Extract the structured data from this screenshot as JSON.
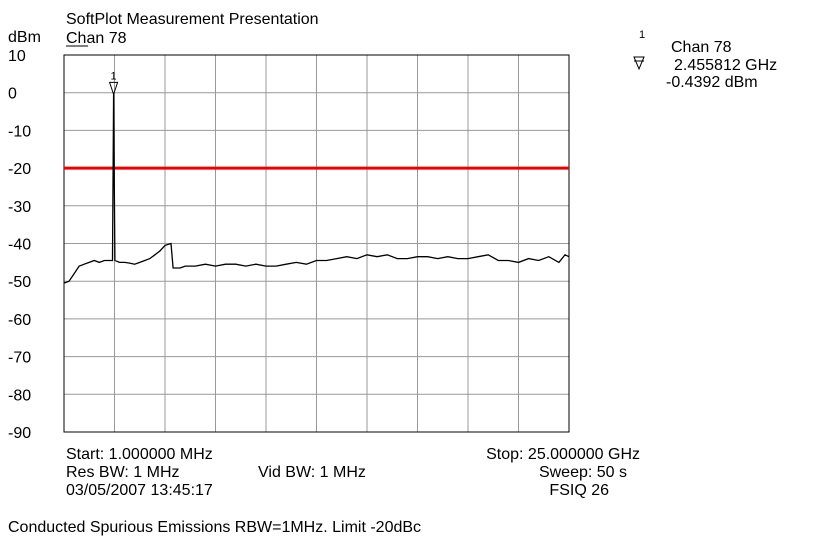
{
  "chart_data": {
    "type": "line",
    "title": "SoftPlot Measurement Presentation",
    "y_unit": "dBm",
    "trace_name": "Chan 78",
    "xlim": [
      0.001,
      25
    ],
    "ylim": [
      -90,
      10
    ],
    "yticks": [
      10,
      0,
      -10,
      -20,
      -30,
      -40,
      -50,
      -60,
      -70,
      -80,
      -90
    ],
    "x_divisions": 10,
    "grid": true,
    "limit": -20,
    "limit_color": "#ee0000",
    "series": [
      {
        "color": "#000000",
        "x": [
          0.001,
          0.25,
          0.5,
          0.75,
          1.0,
          1.25,
          1.5,
          1.75,
          2.0,
          2.3,
          2.4,
          2.455812,
          2.52,
          2.75,
          3.0,
          3.25,
          3.5,
          3.75,
          4.0,
          4.25,
          4.5,
          4.75,
          5.0,
          5.3,
          5.4,
          5.75,
          6.0,
          6.5,
          7,
          7.5,
          8,
          8.5,
          9,
          9.5,
          10,
          10.5,
          11,
          11.5,
          12,
          12.5,
          13,
          13.5,
          14,
          14.5,
          15,
          15.5,
          16,
          16.5,
          17,
          17.5,
          18,
          18.5,
          19,
          19.5,
          20,
          20.5,
          21,
          21.5,
          22,
          22.5,
          23,
          23.5,
          24,
          24.5,
          24.8,
          25
        ],
        "values": [
          -50.5,
          -50,
          -48,
          -46,
          -45.5,
          -45,
          -44.5,
          -45,
          -44.5,
          -44.5,
          -44.5,
          -0.4392,
          -44.5,
          -45,
          -45,
          -45.2,
          -45.5,
          -45,
          -44.5,
          -44,
          -43,
          -42,
          -40.5,
          -40,
          -46.5,
          -46.5,
          -46,
          -46,
          -45.5,
          -46,
          -45.5,
          -45.5,
          -46,
          -45.5,
          -46,
          -46,
          -45.5,
          -45,
          -45.5,
          -44.5,
          -44.5,
          -44,
          -43.5,
          -44,
          -43,
          -43.5,
          -43,
          -44,
          -44,
          -43.5,
          -43.5,
          -44,
          -43.5,
          -44,
          -44,
          -43.5,
          -43,
          -44.5,
          -44.5,
          -45,
          -44,
          -44.5,
          -43.5,
          -45,
          -43,
          -43.5
        ]
      }
    ],
    "marker": {
      "number": "1",
      "name": "Chan 78",
      "x": 2.455812,
      "y": -0.4392,
      "x_label": "2.455812 GHz",
      "y_label": "-0.4392 dBm"
    },
    "footer": {
      "start": "Start: 1.000000 MHz",
      "stop": "Stop: 25.000000 GHz",
      "res_bw": "Res BW: 1 MHz",
      "vid_bw": "Vid BW: 1 MHz",
      "sweep": "Sweep: 50 s",
      "date": "03/05/2007 13:45:17",
      "device": "FSIQ 26",
      "caption": "Conducted Spurious Emissions RBW=1MHz.  Limit -20dBc"
    }
  }
}
